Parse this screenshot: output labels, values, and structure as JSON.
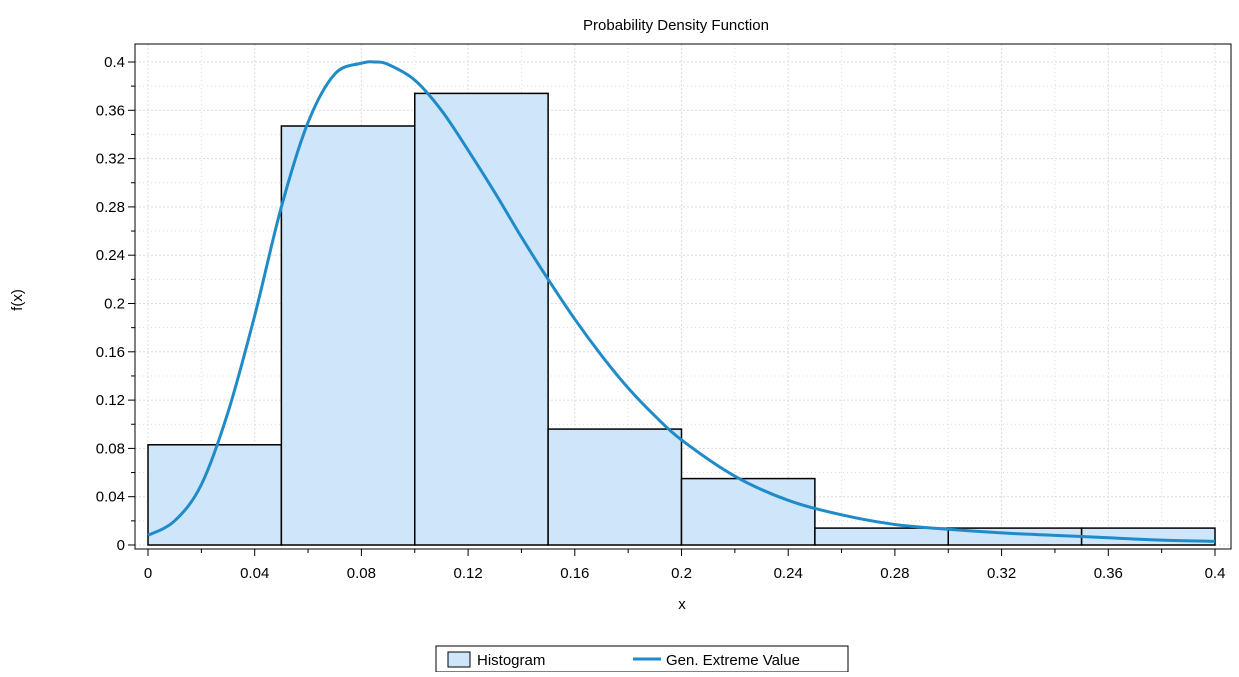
{
  "chart_data": {
    "type": "bar",
    "title": "Probability Density Function",
    "xlabel": "x",
    "ylabel": "f(x)",
    "xlim": [
      0,
      0.4
    ],
    "ylim": [
      0,
      0.4
    ],
    "x_ticks": [
      "0",
      "0.04",
      "0.08",
      "0.12",
      "0.16",
      "0.2",
      "0.24",
      "0.28",
      "0.32",
      "0.36",
      "0.4"
    ],
    "y_ticks": [
      "0",
      "0.04",
      "0.08",
      "0.12",
      "0.16",
      "0.2",
      "0.24",
      "0.28",
      "0.32",
      "0.36",
      "0.4"
    ],
    "grid": true,
    "legend_position": "bottom",
    "series": [
      {
        "name": "Histogram",
        "kind": "histogram",
        "color": "#cfe5f9",
        "edge_color": "#000000",
        "bins": [
          {
            "x0": 0.0,
            "x1": 0.05,
            "value": 0.083
          },
          {
            "x0": 0.05,
            "x1": 0.1,
            "value": 0.347
          },
          {
            "x0": 0.1,
            "x1": 0.15,
            "value": 0.374
          },
          {
            "x0": 0.15,
            "x1": 0.2,
            "value": 0.096
          },
          {
            "x0": 0.2,
            "x1": 0.25,
            "value": 0.055
          },
          {
            "x0": 0.25,
            "x1": 0.3,
            "value": 0.014
          },
          {
            "x0": 0.3,
            "x1": 0.35,
            "value": 0.014
          },
          {
            "x0": 0.35,
            "x1": 0.4,
            "value": 0.014
          }
        ]
      },
      {
        "name": "Gen. Extreme Value",
        "kind": "line",
        "color": "#1f8bc9",
        "x": [
          0.0,
          0.01,
          0.02,
          0.03,
          0.04,
          0.05,
          0.06,
          0.07,
          0.08,
          0.085,
          0.09,
          0.1,
          0.11,
          0.12,
          0.13,
          0.14,
          0.15,
          0.16,
          0.17,
          0.18,
          0.19,
          0.2,
          0.22,
          0.24,
          0.26,
          0.28,
          0.3,
          0.32,
          0.34,
          0.36,
          0.38,
          0.4
        ],
        "y": [
          0.008,
          0.02,
          0.05,
          0.11,
          0.19,
          0.28,
          0.35,
          0.39,
          0.399,
          0.4,
          0.398,
          0.385,
          0.36,
          0.327,
          0.292,
          0.255,
          0.22,
          0.187,
          0.157,
          0.13,
          0.107,
          0.087,
          0.057,
          0.037,
          0.025,
          0.017,
          0.013,
          0.01,
          0.008,
          0.006,
          0.004,
          0.003
        ]
      }
    ]
  }
}
